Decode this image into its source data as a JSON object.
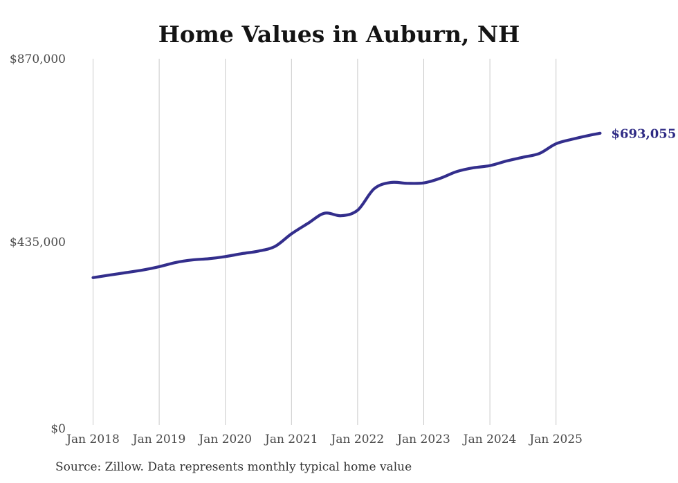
{
  "source_note": "Source: Zillow. Data represents monthly typical home value",
  "colors": {
    "line": "#332e8c",
    "end_label": "#2e2a84",
    "grid": "#c9c9c9",
    "axis_text": "#4a4a4a",
    "title_text": "#141414",
    "source_text": "#333333",
    "background": "#ffffff"
  },
  "chart_data": {
    "type": "line",
    "title": "Home Values in Auburn, NH",
    "xlabel": "",
    "ylabel": "",
    "ylim": [
      0,
      870000
    ],
    "grid": "vertical-only",
    "legend": "none",
    "x_tick_labels": [
      "Jan 2018",
      "Jan 2019",
      "Jan 2020",
      "Jan 2021",
      "Jan 2022",
      "Jan 2023",
      "Jan 2024",
      "Jan 2025"
    ],
    "y_tick_labels": [
      "$870,000",
      "$435,000",
      "$0"
    ],
    "y_tick_values": [
      870000,
      435000,
      0
    ],
    "end_annotation": {
      "text": "$693,055",
      "value": 693055,
      "date": "2025-09"
    },
    "series": [
      {
        "name": "Monthly typical home value",
        "points": [
          {
            "date": "2018-01",
            "value": 350000
          },
          {
            "date": "2018-04",
            "value": 356000
          },
          {
            "date": "2018-07",
            "value": 362000
          },
          {
            "date": "2018-10",
            "value": 368000
          },
          {
            "date": "2019-01",
            "value": 376000
          },
          {
            "date": "2019-04",
            "value": 386000
          },
          {
            "date": "2019-07",
            "value": 392000
          },
          {
            "date": "2019-10",
            "value": 395000
          },
          {
            "date": "2020-01",
            "value": 400000
          },
          {
            "date": "2020-04",
            "value": 407000
          },
          {
            "date": "2020-07",
            "value": 413000
          },
          {
            "date": "2020-10",
            "value": 424000
          },
          {
            "date": "2021-01",
            "value": 454000
          },
          {
            "date": "2021-04",
            "value": 479000
          },
          {
            "date": "2021-07",
            "value": 503000
          },
          {
            "date": "2021-10",
            "value": 497000
          },
          {
            "date": "2022-01",
            "value": 510000
          },
          {
            "date": "2022-04",
            "value": 561000
          },
          {
            "date": "2022-07",
            "value": 576000
          },
          {
            "date": "2022-10",
            "value": 574000
          },
          {
            "date": "2023-01",
            "value": 575000
          },
          {
            "date": "2023-04",
            "value": 586000
          },
          {
            "date": "2023-07",
            "value": 602000
          },
          {
            "date": "2023-10",
            "value": 611000
          },
          {
            "date": "2024-01",
            "value": 616000
          },
          {
            "date": "2024-04",
            "value": 627000
          },
          {
            "date": "2024-07",
            "value": 636000
          },
          {
            "date": "2024-10",
            "value": 645000
          },
          {
            "date": "2025-01",
            "value": 668000
          },
          {
            "date": "2025-04",
            "value": 679000
          },
          {
            "date": "2025-07",
            "value": 688000
          },
          {
            "date": "2025-09",
            "value": 693055
          }
        ]
      }
    ]
  }
}
